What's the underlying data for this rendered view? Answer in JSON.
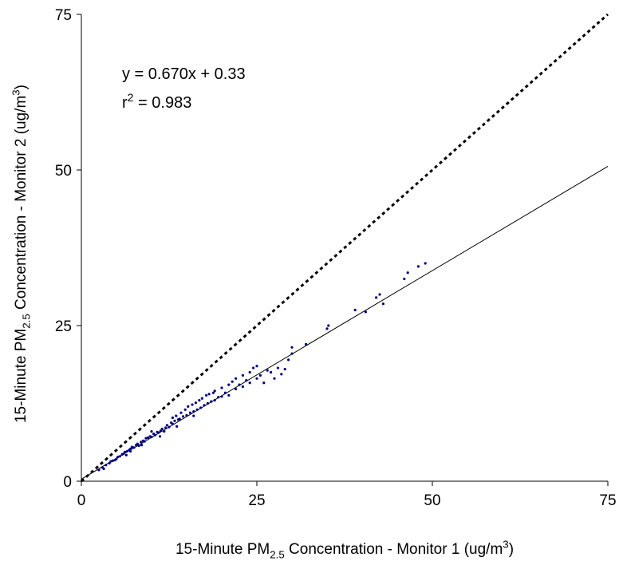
{
  "chart_data": {
    "type": "scatter",
    "x_label": [
      "15-Minute PM",
      {
        "text": "2.5",
        "shift": "sub"
      },
      " Concentration - Monitor 1 (ug/m",
      {
        "text": "3",
        "shift": "super"
      },
      ")"
    ],
    "y_label": [
      "15-Minute PM",
      {
        "text": "2.5",
        "shift": "sub"
      },
      " Concentration - Monitor 2 (ug/m",
      {
        "text": "3",
        "shift": "super"
      },
      ")"
    ],
    "annotations": [
      [
        "y = 0.670x + 0.33"
      ],
      [
        "r",
        {
          "text": "2",
          "shift": "super"
        },
        " = 0.983"
      ]
    ],
    "xlim": [
      0,
      75
    ],
    "ylim": [
      0,
      75
    ],
    "xticks": [
      0,
      25,
      50,
      75
    ],
    "yticks": [
      0,
      25,
      50,
      75
    ],
    "grid": false,
    "color": "#000080",
    "fit_line": {
      "x": [
        0,
        75
      ],
      "y": [
        0.33,
        50.58
      ],
      "dashed": false
    },
    "identity_line": {
      "x": [
        0,
        75
      ],
      "y": [
        0,
        75
      ],
      "dashed": true
    },
    "x": [
      2.5,
      3,
      3.5,
      4,
      4.2,
      4.5,
      5,
      5.2,
      5.5,
      5.8,
      6,
      6.2,
      6.5,
      6.8,
      7,
      7.2,
      7.5,
      7.8,
      8,
      8.2,
      8.5,
      8.8,
      9,
      9.2,
      9.5,
      9.8,
      10,
      10.3,
      10.5,
      10.8,
      11,
      11.3,
      11.5,
      11.8,
      12,
      12.2,
      12.5,
      12.8,
      13,
      13,
      13.3,
      13.5,
      13.8,
      14,
      14.2,
      14.5,
      14.8,
      15,
      15.2,
      15.5,
      15.8,
      16,
      16.3,
      16.5,
      16.8,
      17,
      17.2,
      17.5,
      17.8,
      18,
      18.2,
      18.5,
      18.8,
      19,
      19.5,
      20,
      20.5,
      21,
      21,
      21.5,
      22,
      22,
      22.5,
      23,
      23,
      23.5,
      24,
      24,
      24.5,
      25,
      25,
      25.5,
      26,
      26.5,
      27,
      27.5,
      28,
      28.5,
      29,
      29.5,
      30,
      30,
      32,
      35,
      35.2,
      39,
      40.5,
      42,
      42.5,
      43,
      46,
      46.5,
      48,
      49,
      3.2,
      4.8,
      6.4,
      8.6,
      11.2,
      13.6,
      16,
      20,
      19,
      10,
      7
    ],
    "y": [
      1.8,
      2.2,
      2.6,
      2.9,
      3.2,
      3.3,
      3.6,
      3.9,
      4.0,
      4.3,
      4.4,
      4.7,
      4.8,
      5.0,
      5.2,
      5.5,
      5.4,
      5.8,
      6.0,
      5.7,
      6.3,
      6.5,
      6.4,
      6.9,
      7.0,
      7.2,
      7.1,
      7.6,
      7.4,
      7.9,
      7.8,
      8.1,
      8.4,
      8.0,
      8.6,
      9.0,
      8.7,
      9.4,
      9.2,
      10.2,
      9.7,
      10.5,
      9.9,
      10.0,
      11.0,
      10.4,
      11.5,
      10.6,
      12.0,
      11.0,
      12.3,
      11.2,
      12.6,
      11.5,
      13.0,
      11.8,
      13.3,
      12.2,
      13.8,
      12.5,
      14.0,
      12.8,
      14.2,
      13.0,
      13.5,
      13.6,
      14.2,
      15.5,
      13.8,
      16.0,
      14.8,
      16.5,
      15.5,
      17.0,
      15.2,
      16.2,
      17.5,
      15.8,
      18.2,
      16.5,
      18.5,
      17.0,
      15.8,
      17.8,
      17.5,
      16.5,
      18.2,
      17.2,
      18.0,
      19.5,
      20.5,
      21.5,
      22.0,
      24.5,
      25.0,
      27.5,
      27.2,
      29.5,
      30.0,
      28.5,
      32.5,
      33.5,
      34.5,
      35.0,
      2.0,
      3.4,
      4.2,
      5.8,
      7.2,
      8.8,
      10.5,
      15.0,
      14.5,
      8.0,
      4.8
    ]
  }
}
